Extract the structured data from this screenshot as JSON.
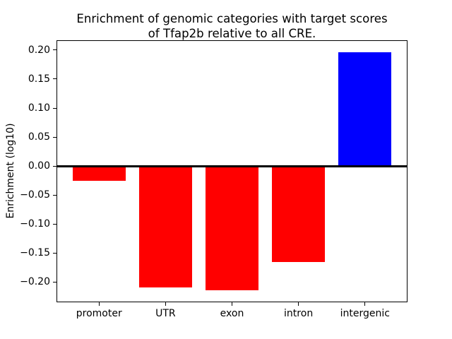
{
  "figure": {
    "background": "#ffffff",
    "text_color": "#000000",
    "axis_color": "#000000"
  },
  "chart_data": {
    "type": "bar",
    "title": "Enrichment of genomic categories with target scores\nof Tfap2b relative to all CRE.",
    "title_lines": [
      "Enrichment of genomic categories with target scores",
      "of Tfap2b relative to all CRE."
    ],
    "xlabel": "",
    "ylabel": "Enrichment (log10)",
    "categories": [
      "promoter",
      "UTR",
      "exon",
      "intron",
      "intergenic"
    ],
    "values": [
      -0.026,
      -0.21,
      -0.214,
      -0.166,
      0.196
    ],
    "bar_colors": [
      "#ff0000",
      "#ff0000",
      "#ff0000",
      "#ff0000",
      "#0000ff"
    ],
    "negative_color": "#ff0000",
    "positive_color": "#0000ff",
    "bar_width_fraction": 0.8,
    "ylim": [
      -0.235,
      0.217
    ],
    "yticks": [
      0.2,
      0.15,
      0.1,
      0.05,
      0.0,
      -0.05,
      -0.1,
      -0.15,
      -0.2
    ],
    "ytick_labels": [
      "0.20",
      "0.15",
      "0.10",
      "0.05",
      "0.00",
      "−0.05",
      "−0.10",
      "−0.15",
      "−0.20"
    ],
    "zero_line": true,
    "grid": false,
    "legend": null
  }
}
